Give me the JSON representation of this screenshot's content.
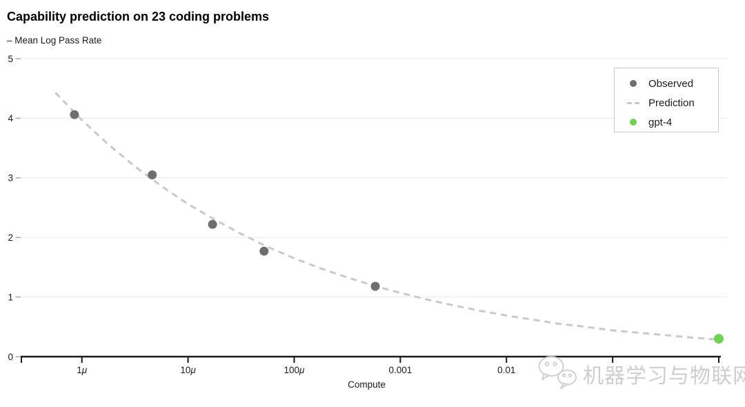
{
  "header": {
    "title": "Capability prediction on 23 coding problems",
    "y_axis_title": "– Mean Log Pass Rate"
  },
  "watermark": {
    "text": "机器学习与物联网",
    "icon": "wechat-logo-icon"
  },
  "colors": {
    "observed": "#6e6e6e",
    "prediction": "#c9c9c9",
    "gpt4": "#70d24f",
    "grid": "#ececec",
    "axis": "#1a1a1a",
    "tick": "#a9a9a9",
    "text": "#1a1a1a",
    "legend_border": "#c9c9d2"
  },
  "chart_data": {
    "type": "scatter",
    "title": "Capability prediction on 23 coding problems",
    "xlabel": "Compute",
    "ylabel": "– Mean Log Pass Rate",
    "x_scale": "log10",
    "xlim_log10": [
      -6.57,
      0
    ],
    "ylim": [
      0,
      5
    ],
    "grid": "horizontal",
    "y_ticks": [
      0,
      1,
      2,
      3,
      4,
      5
    ],
    "x_ticks": [
      {
        "log10": -6,
        "label": "1μ"
      },
      {
        "log10": -5,
        "label": "10μ"
      },
      {
        "log10": -4,
        "label": "100μ"
      },
      {
        "log10": -3,
        "label": "0.001"
      },
      {
        "log10": -2,
        "label": "0.01"
      },
      {
        "log10": -1,
        "label": ""
      },
      {
        "log10": 0,
        "label": ""
      }
    ],
    "series": [
      {
        "name": "Observed",
        "kind": "scatter",
        "color": "#6e6e6e",
        "points": [
          {
            "compute": 8.5e-07,
            "mlpr": 4.06
          },
          {
            "compute": 4.6e-06,
            "mlpr": 3.05
          },
          {
            "compute": 1.7e-05,
            "mlpr": 2.22
          },
          {
            "compute": 5.2e-05,
            "mlpr": 1.77
          },
          {
            "compute": 0.00058,
            "mlpr": 1.18
          }
        ]
      },
      {
        "name": "Prediction",
        "kind": "dashed_line",
        "color": "#c9c9c9",
        "points": [
          {
            "log10_compute": -6.25,
            "mlpr": 4.43
          },
          {
            "log10_compute": -6.0,
            "mlpr": 3.97
          },
          {
            "log10_compute": -5.75,
            "mlpr": 3.56
          },
          {
            "log10_compute": -5.5,
            "mlpr": 3.19
          },
          {
            "log10_compute": -5.25,
            "mlpr": 2.86
          },
          {
            "log10_compute": -5.0,
            "mlpr": 2.56
          },
          {
            "log10_compute": -4.75,
            "mlpr": 2.3
          },
          {
            "log10_compute": -4.5,
            "mlpr": 2.06
          },
          {
            "log10_compute": -4.25,
            "mlpr": 1.84
          },
          {
            "log10_compute": -4.0,
            "mlpr": 1.65
          },
          {
            "log10_compute": -3.75,
            "mlpr": 1.48
          },
          {
            "log10_compute": -3.5,
            "mlpr": 1.33
          },
          {
            "log10_compute": -3.25,
            "mlpr": 1.19
          },
          {
            "log10_compute": -3.0,
            "mlpr": 1.07
          },
          {
            "log10_compute": -2.75,
            "mlpr": 0.96
          },
          {
            "log10_compute": -2.5,
            "mlpr": 0.86
          },
          {
            "log10_compute": -2.25,
            "mlpr": 0.77
          },
          {
            "log10_compute": -2.0,
            "mlpr": 0.69
          },
          {
            "log10_compute": -1.75,
            "mlpr": 0.62
          },
          {
            "log10_compute": -1.5,
            "mlpr": 0.55
          },
          {
            "log10_compute": -1.25,
            "mlpr": 0.5
          },
          {
            "log10_compute": -1.0,
            "mlpr": 0.44
          },
          {
            "log10_compute": -0.75,
            "mlpr": 0.4
          },
          {
            "log10_compute": -0.5,
            "mlpr": 0.36
          },
          {
            "log10_compute": -0.25,
            "mlpr": 0.32
          },
          {
            "log10_compute": -0.03,
            "mlpr": 0.29
          }
        ]
      },
      {
        "name": "gpt-4",
        "kind": "scatter",
        "color": "#70d24f",
        "points": [
          {
            "compute": 1.0,
            "mlpr": 0.3
          }
        ]
      }
    ],
    "legend": {
      "position": "top-right",
      "entries": [
        {
          "label": "Observed",
          "marker": "dot",
          "color": "#6e6e6e"
        },
        {
          "label": "Prediction",
          "marker": "dashes",
          "color": "#c9c9c9"
        },
        {
          "label": "gpt-4",
          "marker": "dot",
          "color": "#70d24f"
        }
      ]
    }
  }
}
